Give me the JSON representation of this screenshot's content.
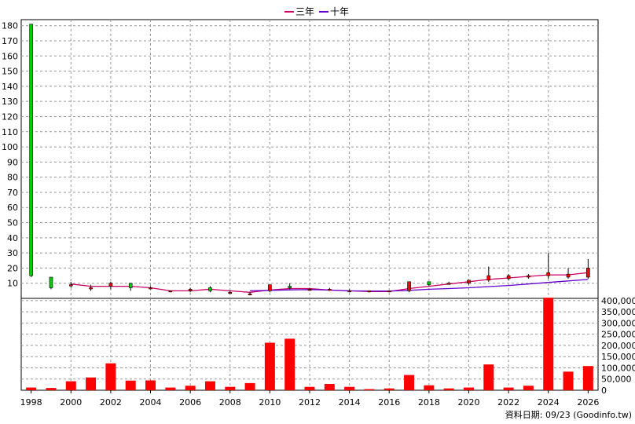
{
  "legend": {
    "items": [
      {
        "label": "三年",
        "color": "#cc0066"
      },
      {
        "label": "十年",
        "color": "#6600cc"
      }
    ]
  },
  "footer": {
    "text": "資料日期: 09/23  (Goodinfo.tw)"
  },
  "colors": {
    "up": "#ff0000",
    "down": "#00cc00",
    "volume": "#ff0000",
    "grid": "#999999"
  },
  "chart_data": [
    {
      "type": "candlestick",
      "title": "",
      "x": [
        1998,
        1999,
        2000,
        2001,
        2002,
        2003,
        2004,
        2005,
        2006,
        2007,
        2008,
        2009,
        2010,
        2011,
        2012,
        2013,
        2014,
        2015,
        2016,
        2017,
        2018,
        2019,
        2020,
        2021,
        2022,
        2023,
        2024,
        2025,
        2026
      ],
      "open": [
        181,
        14,
        9,
        7,
        8,
        10,
        7,
        5,
        5,
        7,
        4,
        3,
        5,
        8,
        6,
        6,
        5,
        5,
        5,
        5,
        11,
        10,
        10,
        12,
        13,
        14,
        15,
        14,
        14
      ],
      "close": [
        15,
        7,
        9,
        7,
        10,
        7,
        7,
        5,
        6,
        5,
        4,
        3,
        9,
        7,
        6,
        6,
        5,
        5,
        5,
        11,
        9,
        10,
        12,
        15,
        15,
        15,
        17,
        16,
        20
      ],
      "high": [
        181,
        14,
        11,
        9,
        11,
        10,
        8,
        5,
        7,
        8,
        5,
        4,
        9,
        10,
        7,
        7,
        6,
        5,
        5,
        11,
        11,
        11,
        12,
        21,
        16,
        16,
        30,
        20,
        26
      ],
      "low": [
        14,
        6,
        7,
        5,
        6,
        5,
        6,
        4,
        4,
        4,
        3,
        2,
        4,
        6,
        5,
        5,
        4,
        4,
        4,
        4,
        8,
        9,
        9,
        11,
        12,
        13,
        13,
        13,
        13
      ],
      "series": [
        {
          "name": "三年",
          "x": [
            2000,
            2001,
            2002,
            2003,
            2004,
            2005,
            2006,
            2007,
            2008,
            2009,
            2010,
            2011,
            2012,
            2013,
            2014,
            2015,
            2016,
            2017,
            2018,
            2019,
            2020,
            2021,
            2022,
            2023,
            2024,
            2025,
            2026
          ],
          "values": [
            9.5,
            8.0,
            8.0,
            8.0,
            7.0,
            5.0,
            5.0,
            6.0,
            5.0,
            4.0,
            5.5,
            6.5,
            6.5,
            5.5,
            5.0,
            4.5,
            4.5,
            6.5,
            8.0,
            9.5,
            11.0,
            12.5,
            13.5,
            14.5,
            15.5,
            15.5,
            17.0
          ]
        },
        {
          "name": "十年",
          "x": [
            2009,
            2010,
            2011,
            2012,
            2013,
            2014,
            2015,
            2016,
            2017,
            2018,
            2019,
            2020,
            2021,
            2022,
            2023,
            2024,
            2025,
            2026
          ],
          "values": [
            5.0,
            5.3,
            5.6,
            5.8,
            5.5,
            5.0,
            4.8,
            4.8,
            5.3,
            6.0,
            6.5,
            7.0,
            7.8,
            8.5,
            9.5,
            10.5,
            11.5,
            12.5
          ]
        }
      ],
      "yticks": [
        10,
        20,
        30,
        40,
        50,
        60,
        70,
        80,
        90,
        100,
        110,
        120,
        130,
        140,
        150,
        160,
        170,
        180
      ],
      "ylim": [
        0,
        184
      ],
      "grid": true,
      "legend": "top-center"
    },
    {
      "type": "bar",
      "title": "",
      "x": [
        1998,
        1999,
        2000,
        2001,
        2002,
        2003,
        2004,
        2005,
        2006,
        2007,
        2008,
        2009,
        2010,
        2011,
        2012,
        2013,
        2014,
        2015,
        2016,
        2017,
        2018,
        2019,
        2020,
        2021,
        2022,
        2023,
        2024,
        2025,
        2026
      ],
      "values": [
        12000,
        10000,
        40000,
        57000,
        120000,
        43000,
        44000,
        12000,
        20000,
        40000,
        15000,
        32000,
        212000,
        230000,
        15000,
        28000,
        15000,
        5000,
        8000,
        68000,
        22000,
        8000,
        12000,
        115000,
        12000,
        20000,
        413000,
        83000,
        108000
      ],
      "yticks": [
        0,
        50000,
        100000,
        150000,
        200000,
        250000,
        300000,
        350000,
        400000
      ],
      "ytick_labels": [
        "0",
        "50,000",
        "100,000",
        "150,000",
        "200,000",
        "250,000",
        "300,000",
        "350,000",
        "400,000"
      ],
      "ylim": [
        0,
        410000
      ],
      "xtick_labels": [
        "1998",
        "2000",
        "2002",
        "2004",
        "2006",
        "2008",
        "2010",
        "2012",
        "2014",
        "2016",
        "2018",
        "2020",
        "2022",
        "2024",
        "2026"
      ],
      "grid": true
    }
  ]
}
